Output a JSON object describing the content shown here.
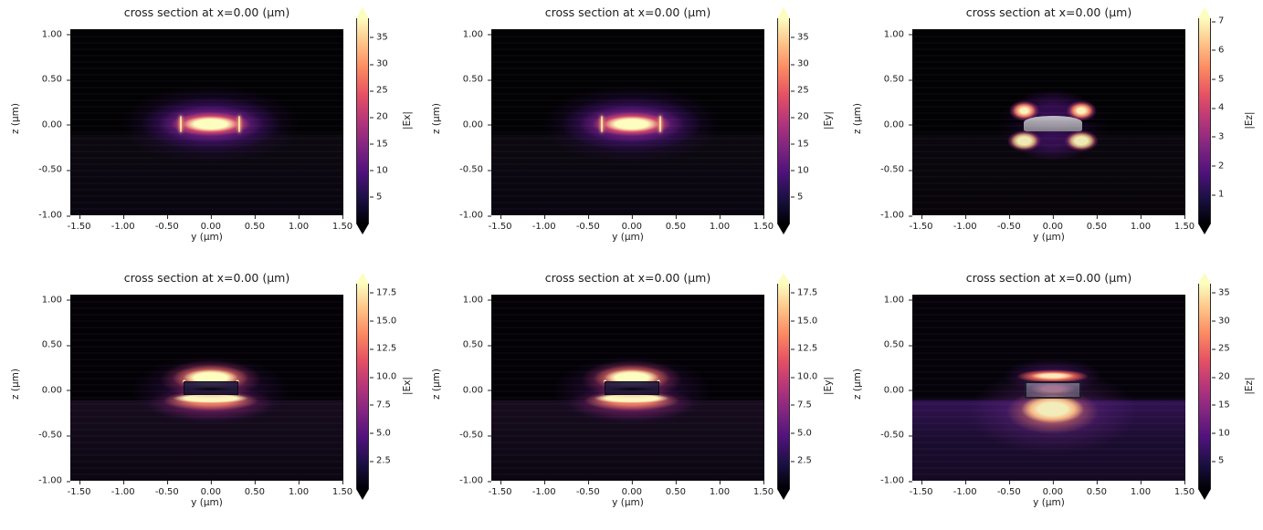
{
  "figure": {
    "kind": "matplotlib-figure",
    "rows": 2,
    "cols": 3,
    "background": "#ffffff",
    "text_color": "#1c1c1c",
    "colormap": "magma"
  },
  "chart_data": [
    {
      "type": "heatmap",
      "panel": "top-left",
      "title": "cross section at x=0.00 (μm)",
      "xlabel": "y (μm)",
      "ylabel": "z (μm)",
      "xlim": [
        -1.6,
        1.51
      ],
      "ylim": [
        -1.0,
        1.06
      ],
      "xticks": [
        "-1.50",
        "-1.00",
        "-0.50",
        "0.00",
        "0.50",
        "1.00",
        "1.50"
      ],
      "yticks": [
        "1.00",
        "0.50",
        "0.00",
        "-0.50",
        "-1.00"
      ],
      "colormap": "magma",
      "colorbar": {
        "label": "|Ex|",
        "ticks": [
          "5",
          "10",
          "15",
          "20",
          "25",
          "30",
          "35"
        ],
        "vmin": 0,
        "vmax": 38.6,
        "extend": "both"
      },
      "description": "mode-0 |Ex|: single bright horizontal lobe centered at (y=0, z=0), cream core about ±0.3×±0.08 μm, orange ring, stepped purple halo to ±0.8×±0.35 μm, thin bright vertical edge lines at y≈±0.33 μm, faint substrate interface at z=-0.1 μm"
    },
    {
      "type": "heatmap",
      "panel": "top-middle",
      "title": "cross section at x=0.00 (μm)",
      "xlabel": "y (μm)",
      "ylabel": "z (μm)",
      "xlim": [
        -1.6,
        1.51
      ],
      "ylim": [
        -1.0,
        1.06
      ],
      "xticks": [
        "-1.50",
        "-1.00",
        "-0.50",
        "0.00",
        "0.50",
        "1.00",
        "1.50"
      ],
      "yticks": [
        "1.00",
        "0.50",
        "0.00",
        "-0.50",
        "-1.00"
      ],
      "colormap": "magma",
      "colorbar": {
        "label": "|Ey|",
        "ticks": [
          "5",
          "10",
          "15",
          "20",
          "25",
          "30",
          "35"
        ],
        "vmin": 0,
        "vmax": 38.6,
        "extend": "both"
      },
      "description": "mode-0 |Ey|: same single bright horizontal lobe at (0,0) with bright vertical edge lines at y≈±0.33 μm and purple halo"
    },
    {
      "type": "heatmap",
      "panel": "top-right",
      "title": "cross section at x=0.00 (μm)",
      "xlabel": "y (μm)",
      "ylabel": "z (μm)",
      "xlim": [
        -1.6,
        1.51
      ],
      "ylim": [
        -1.0,
        1.06
      ],
      "xticks": [
        "-1.50",
        "-1.00",
        "-0.50",
        "0.00",
        "0.50",
        "1.00",
        "1.50"
      ],
      "yticks": [
        "1.00",
        "0.50",
        "0.00",
        "-0.50",
        "-1.00"
      ],
      "colormap": "magma",
      "colorbar": {
        "label": "|Ez|",
        "ticks": [
          "1",
          "2",
          "3",
          "4",
          "5",
          "6",
          "7"
        ],
        "vmin": 0,
        "vmax": 7.1,
        "extend": "both"
      },
      "structure": {
        "style": "slab-gray",
        "y": [
          -0.33,
          0.33
        ],
        "z": [
          -0.07,
          0.105
        ]
      },
      "description": "mode-0 |Ez|: four quadrant lobes at y≈±0.3, z≈+0.16/-0.19 μm around an opaque gray waveguide slab; dark null line along z≈0.04 μm"
    },
    {
      "type": "heatmap",
      "panel": "bottom-left",
      "title": "cross section at x=0.00 (μm)",
      "xlabel": "y (μm)",
      "ylabel": "z (μm)",
      "xlim": [
        -1.6,
        1.51
      ],
      "ylim": [
        -1.0,
        1.06
      ],
      "xticks": [
        "-1.50",
        "-1.00",
        "-0.50",
        "0.00",
        "0.50",
        "1.00",
        "1.50"
      ],
      "yticks": [
        "1.00",
        "0.50",
        "0.00",
        "-0.50",
        "-1.00"
      ],
      "colormap": "magma",
      "colorbar": {
        "label": "|Ex|",
        "ticks": [
          "2.5",
          "5.0",
          "7.5",
          "10.0",
          "12.5",
          "15.0",
          "17.5"
        ],
        "vmin": 0,
        "vmax": 18.3,
        "extend": "both"
      },
      "structure": {
        "style": "outline-dark",
        "y": [
          -0.31,
          0.31
        ],
        "z": [
          -0.05,
          0.1
        ]
      },
      "description": "mode-1 |Ex|: bright cream lens above waveguide top (z≈0.1..0.2 μm), dark field inside the outlined core, wide bright band just below the core at z≈-0.05..-0.13 μm, purple halo"
    },
    {
      "type": "heatmap",
      "panel": "bottom-middle",
      "title": "cross section at x=0.00 (μm)",
      "xlabel": "y (μm)",
      "ylabel": "z (μm)",
      "xlim": [
        -1.6,
        1.51
      ],
      "ylim": [
        -1.0,
        1.06
      ],
      "xticks": [
        "-1.50",
        "-1.00",
        "-0.50",
        "0.00",
        "0.50",
        "1.00",
        "1.50"
      ],
      "yticks": [
        "1.00",
        "0.50",
        "0.00",
        "-0.50",
        "-1.00"
      ],
      "colormap": "magma",
      "colorbar": {
        "label": "|Ey|",
        "ticks": [
          "2.5",
          "5.0",
          "7.5",
          "10.0",
          "12.5",
          "15.0",
          "17.5"
        ],
        "vmin": 0,
        "vmax": 18.3,
        "extend": "both"
      },
      "structure": {
        "style": "outline-dark",
        "y": [
          -0.31,
          0.31
        ],
        "z": [
          -0.05,
          0.1
        ]
      },
      "description": "mode-1 |Ey|: same pattern as mode-1 |Ex| — cream lens above core, dark core interior, bright band below"
    },
    {
      "type": "heatmap",
      "panel": "bottom-right",
      "title": "cross section at x=0.00 (μm)",
      "xlabel": "y (μm)",
      "ylabel": "z (μm)",
      "xlim": [
        -1.6,
        1.51
      ],
      "ylim": [
        -1.0,
        1.06
      ],
      "xticks": [
        "-1.50",
        "-1.00",
        "-0.50",
        "0.00",
        "0.50",
        "1.00",
        "1.50"
      ],
      "yticks": [
        "1.00",
        "0.50",
        "0.00",
        "-0.50",
        "-1.00"
      ],
      "colormap": "magma",
      "colorbar": {
        "label": "|Ez|",
        "ticks": [
          "5",
          "10",
          "15",
          "20",
          "25",
          "30",
          "35"
        ],
        "vmin": 0,
        "vmax": 36.6,
        "extend": "both"
      },
      "structure": {
        "style": "outline-glass",
        "y": [
          -0.32,
          0.32
        ],
        "z": [
          -0.095,
          0.105
        ]
      },
      "description": "mode-1 |Ez|: orange glow band above the translucent waveguide, pinkish field inside it, large cream lobe below (z≈-0.1..-0.35 μm), bright purple substrate filling z<-0.1 μm"
    }
  ]
}
